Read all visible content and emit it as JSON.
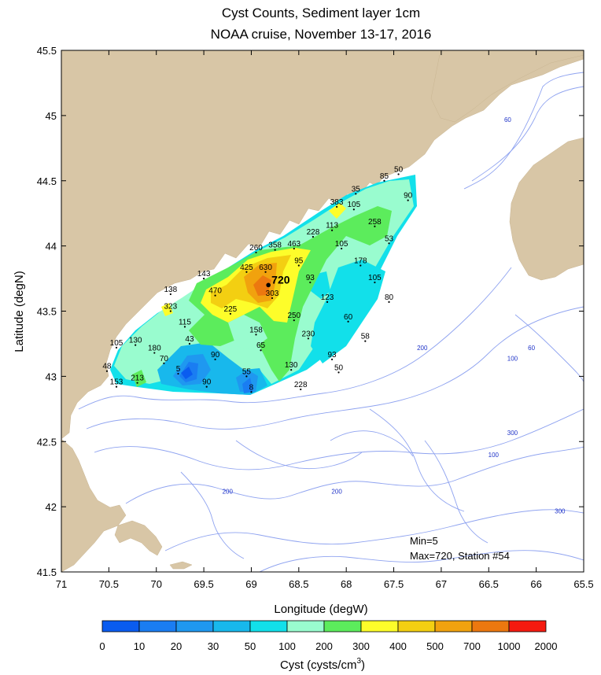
{
  "chart_data": {
    "type": "map",
    "title": "Cyst Counts, Sediment layer 1cm",
    "subtitle": "NOAA cruise, November 13-17, 2016",
    "xlabel": "Longitude (degW)",
    "ylabel": "Latitude (degN)",
    "xlim": [
      71,
      65.5
    ],
    "ylim": [
      41.5,
      45.5
    ],
    "x_ticks": [
      "71",
      "70.5",
      "70",
      "69.5",
      "69",
      "68.5",
      "68",
      "67.5",
      "67",
      "66.5",
      "66",
      "65.5"
    ],
    "y_ticks": [
      "41.5",
      "42",
      "42.5",
      "43",
      "43.5",
      "44",
      "44.5",
      "45",
      "45.5"
    ],
    "colorbar": {
      "label": "Cyst (cysts/cm",
      "label_superscript": "3",
      "label_suffix": ")",
      "boundaries": [
        "0",
        "10",
        "20",
        "30",
        "50",
        "100",
        "200",
        "300",
        "400",
        "500",
        "700",
        "1000",
        "2000"
      ],
      "colors": [
        "#0a5cf0",
        "#1a7df2",
        "#1f98f0",
        "#18b8ec",
        "#12e0ea",
        "#99fccf",
        "#5cec5c",
        "#fdfd2a",
        "#f3cf12",
        "#f1a20e",
        "#ec780f",
        "#f51a10"
      ]
    },
    "stations": [
      {
        "lon": 67.45,
        "lat": 44.55,
        "value": "50"
      },
      {
        "lon": 67.6,
        "lat": 44.5,
        "value": "85"
      },
      {
        "lon": 67.35,
        "lat": 44.35,
        "value": "90"
      },
      {
        "lon": 67.9,
        "lat": 44.4,
        "value": "35"
      },
      {
        "lon": 68.1,
        "lat": 44.3,
        "value": "383"
      },
      {
        "lon": 67.92,
        "lat": 44.28,
        "value": "105"
      },
      {
        "lon": 67.7,
        "lat": 44.15,
        "value": "258"
      },
      {
        "lon": 68.15,
        "lat": 44.12,
        "value": "113"
      },
      {
        "lon": 68.35,
        "lat": 44.07,
        "value": "228"
      },
      {
        "lon": 67.55,
        "lat": 44.02,
        "value": "53"
      },
      {
        "lon": 68.05,
        "lat": 43.98,
        "value": "105"
      },
      {
        "lon": 68.55,
        "lat": 43.98,
        "value": "463"
      },
      {
        "lon": 68.75,
        "lat": 43.97,
        "value": "358"
      },
      {
        "lon": 68.95,
        "lat": 43.95,
        "value": "260"
      },
      {
        "lon": 68.5,
        "lat": 43.85,
        "value": "95"
      },
      {
        "lon": 67.85,
        "lat": 43.85,
        "value": "178"
      },
      {
        "lon": 68.85,
        "lat": 43.8,
        "value": "630"
      },
      {
        "lon": 69.05,
        "lat": 43.8,
        "value": "425"
      },
      {
        "lon": 69.5,
        "lat": 43.75,
        "value": "143"
      },
      {
        "lon": 68.38,
        "lat": 43.72,
        "value": "93"
      },
      {
        "lon": 68.82,
        "lat": 43.7,
        "value": "720",
        "highlight": true
      },
      {
        "lon": 67.7,
        "lat": 43.72,
        "value": "105"
      },
      {
        "lon": 69.85,
        "lat": 43.63,
        "value": "138"
      },
      {
        "lon": 69.38,
        "lat": 43.62,
        "value": "470"
      },
      {
        "lon": 68.78,
        "lat": 43.6,
        "value": "303"
      },
      {
        "lon": 68.2,
        "lat": 43.57,
        "value": "123"
      },
      {
        "lon": 67.55,
        "lat": 43.57,
        "value": "80"
      },
      {
        "lon": 69.85,
        "lat": 43.5,
        "value": "323"
      },
      {
        "lon": 69.22,
        "lat": 43.48,
        "value": "225"
      },
      {
        "lon": 68.55,
        "lat": 43.43,
        "value": "250"
      },
      {
        "lon": 67.98,
        "lat": 43.42,
        "value": "60"
      },
      {
        "lon": 69.7,
        "lat": 43.38,
        "value": "115"
      },
      {
        "lon": 68.95,
        "lat": 43.32,
        "value": "158"
      },
      {
        "lon": 68.4,
        "lat": 43.29,
        "value": "230"
      },
      {
        "lon": 67.8,
        "lat": 43.27,
        "value": "58"
      },
      {
        "lon": 69.65,
        "lat": 43.25,
        "value": "43"
      },
      {
        "lon": 70.42,
        "lat": 43.22,
        "value": "105"
      },
      {
        "lon": 70.22,
        "lat": 43.24,
        "value": "130"
      },
      {
        "lon": 68.9,
        "lat": 43.2,
        "value": "65"
      },
      {
        "lon": 70.02,
        "lat": 43.18,
        "value": "180"
      },
      {
        "lon": 69.38,
        "lat": 43.13,
        "value": "90"
      },
      {
        "lon": 68.15,
        "lat": 43.13,
        "value": "93"
      },
      {
        "lon": 69.92,
        "lat": 43.1,
        "value": "70"
      },
      {
        "lon": 68.58,
        "lat": 43.05,
        "value": "130"
      },
      {
        "lon": 68.08,
        "lat": 43.03,
        "value": "50"
      },
      {
        "lon": 69.77,
        "lat": 43.02,
        "value": "5"
      },
      {
        "lon": 69.05,
        "lat": 43.0,
        "value": "55"
      },
      {
        "lon": 70.52,
        "lat": 43.04,
        "value": "48"
      },
      {
        "lon": 70.2,
        "lat": 42.95,
        "value": "213"
      },
      {
        "lon": 69.47,
        "lat": 42.92,
        "value": "90"
      },
      {
        "lon": 68.48,
        "lat": 42.9,
        "value": "228"
      },
      {
        "lon": 70.42,
        "lat": 42.92,
        "value": "153"
      },
      {
        "lon": 69.0,
        "lat": 42.88,
        "value": "8"
      }
    ],
    "isobath_labels": [
      {
        "lon": 66.3,
        "lat": 44.95,
        "value": "60"
      },
      {
        "lon": 67.2,
        "lat": 43.2,
        "value": "200"
      },
      {
        "lon": 66.05,
        "lat": 43.2,
        "value": "60"
      },
      {
        "lon": 66.25,
        "lat": 43.12,
        "value": "100"
      },
      {
        "lon": 66.25,
        "lat": 42.55,
        "value": "300"
      },
      {
        "lon": 66.45,
        "lat": 42.38,
        "value": "100"
      },
      {
        "lon": 69.25,
        "lat": 42.1,
        "value": "200"
      },
      {
        "lon": 68.1,
        "lat": 42.1,
        "value": "200"
      },
      {
        "lon": 65.75,
        "lat": 41.95,
        "value": "300"
      }
    ],
    "annotations": [
      "Min=5",
      "Max=720, Station #54"
    ]
  }
}
